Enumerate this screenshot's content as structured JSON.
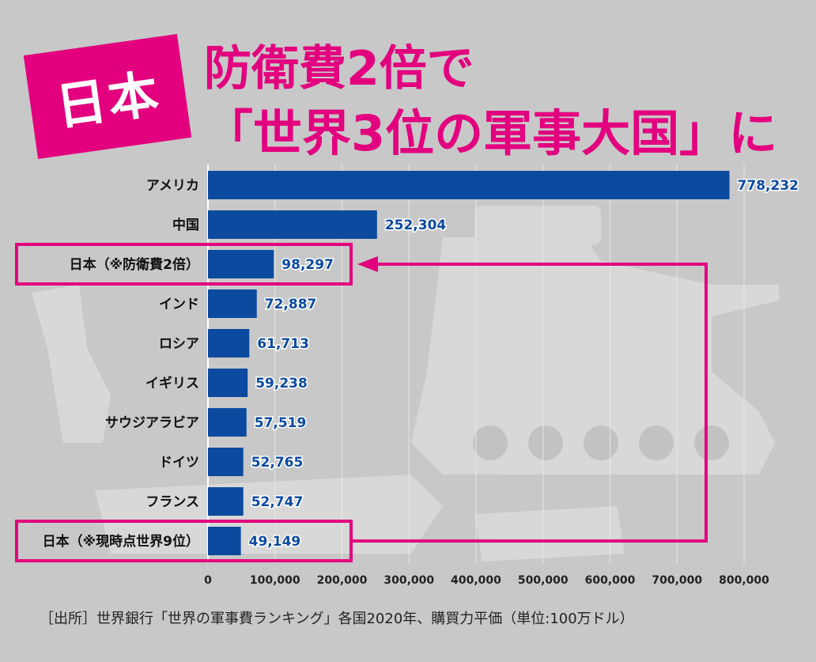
{
  "badge": "日本",
  "title_line1": "防衛費2倍で",
  "title_line2": "「世界3位の軍事大国」に",
  "source": "［出所］世界銀行「世界の軍事費ランキング」各国2020年、購買力平価（単位:100万ドル）",
  "colors": {
    "bar": "#0b4a9e",
    "accent": "#e3007f",
    "value_text": "#0b4a9e"
  },
  "chart_data": {
    "type": "bar",
    "orientation": "horizontal",
    "title": "",
    "xlabel": "",
    "ylabel": "",
    "categories": [
      "アメリカ",
      "中国",
      "日本（※防衛費2倍）",
      "インド",
      "ロシア",
      "イギリス",
      "サウジアラビア",
      "ドイツ",
      "フランス",
      "日本（※現時点世界9位）"
    ],
    "values": [
      778232,
      252304,
      98297,
      72887,
      61713,
      59238,
      57519,
      52765,
      52747,
      49149
    ],
    "value_labels": [
      "778,232",
      "252,304",
      "98,297",
      "72,887",
      "61,713",
      "59,238",
      "57,519",
      "52,765",
      "52,747",
      "49,149"
    ],
    "xlim": [
      0,
      800000
    ],
    "xticks": [
      0,
      100000,
      200000,
      300000,
      400000,
      500000,
      600000,
      700000,
      800000
    ],
    "xtick_labels": [
      "0",
      "100,000",
      "200,000",
      "300,000",
      "400,000",
      "500,000",
      "600,000",
      "700,000",
      "800,000"
    ],
    "grid": "vertical",
    "highlighted": [
      2,
      9
    ]
  }
}
